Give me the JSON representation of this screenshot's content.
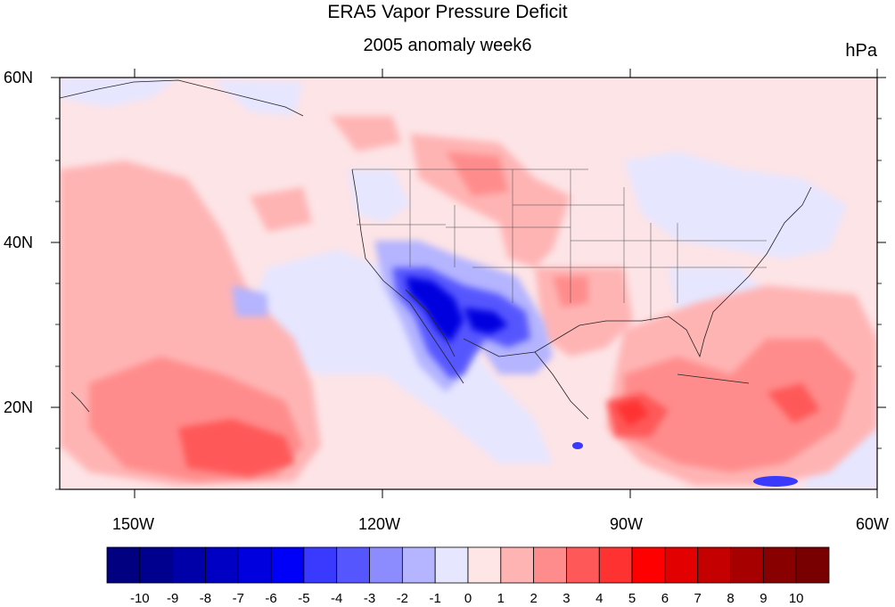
{
  "title": "ERA5 Vapor Pressure Deficit",
  "subtitle": "2005 anomaly week6",
  "units": "hPa",
  "map": {
    "lon_range": [
      -160,
      -60
    ],
    "lat_range": [
      10,
      60
    ],
    "lon_ticks": [
      "150W",
      "120W",
      "90W",
      "60W"
    ],
    "lat_ticks": [
      "60N",
      "40N",
      "20N"
    ]
  },
  "colorbar": {
    "levels": [
      -10,
      -9,
      -8,
      -7,
      -6,
      -5,
      -4,
      -3,
      -2,
      -1,
      0,
      1,
      2,
      3,
      4,
      5,
      6,
      7,
      8,
      9,
      10
    ],
    "labels": [
      "-10",
      "-9",
      "-8",
      "-7",
      "-6",
      "-5",
      "-4",
      "-3",
      "-2",
      "-1",
      "0",
      "1",
      "2",
      "3",
      "4",
      "5",
      "6",
      "7",
      "8",
      "9",
      "10"
    ],
    "colors": [
      "#000080",
      "#00008f",
      "#0000a8",
      "#0000c4",
      "#0000df",
      "#0000f9",
      "#3a3aff",
      "#5656ff",
      "#8c8cff",
      "#b4b4ff",
      "#e6e6ff",
      "#ffe6e6",
      "#ffb4b4",
      "#ff8c8c",
      "#ff5858",
      "#ff3232",
      "#ff0000",
      "#e20000",
      "#c40000",
      "#a60000",
      "#880000",
      "#780000"
    ]
  },
  "colors": {
    "background_anomaly": "#fde4e6",
    "frame": "#000000"
  }
}
